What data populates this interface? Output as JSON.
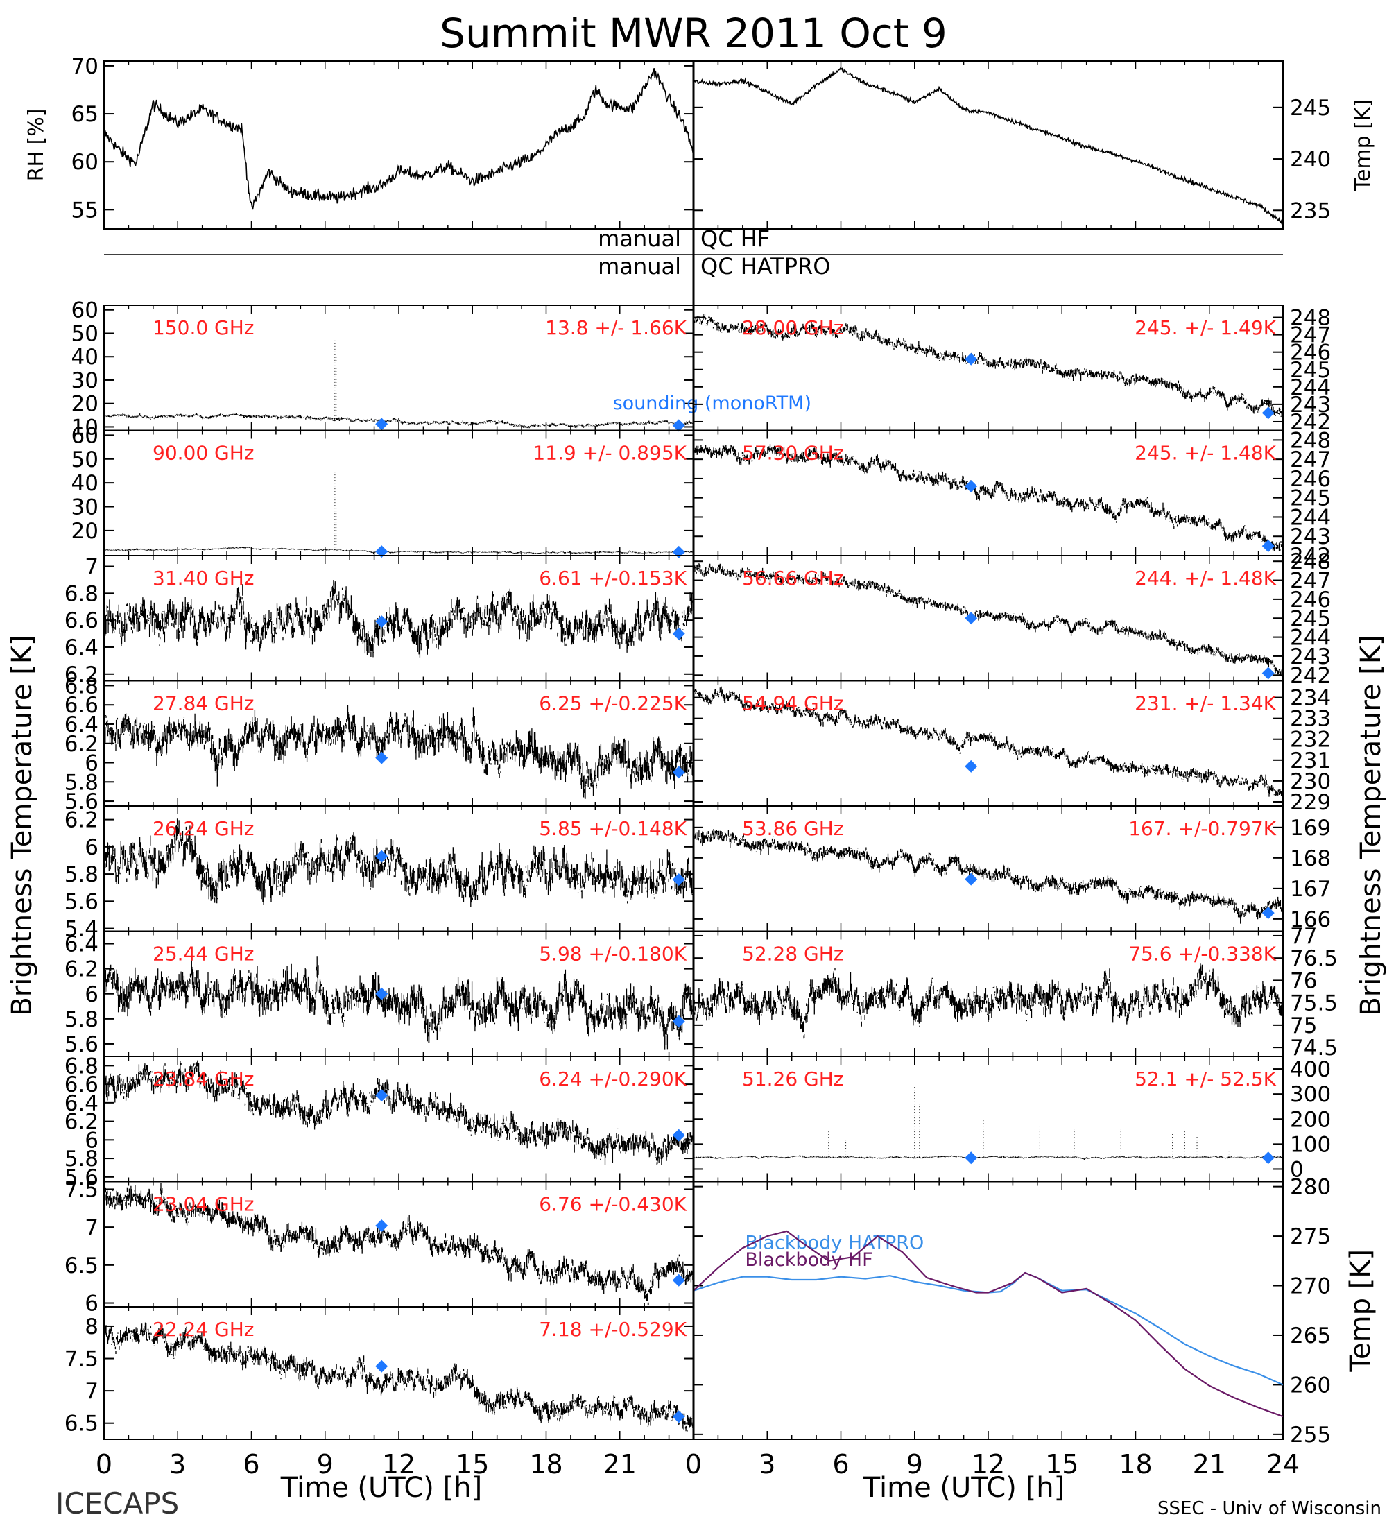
{
  "title": "Summit MWR 2011 Oct  9",
  "footer": {
    "left_label": "ICECAPS",
    "xlabel": "Time (UTC) [h]",
    "credit": "SSEC - Univ of Wisconsin"
  },
  "side_labels": {
    "left": "Brightness Temperature [K]",
    "right": "Brightness Temperature [K]"
  },
  "qc": {
    "hf_left": "manual",
    "hf_right": "QC HF",
    "hatpro_left": "manual",
    "hatpro_right": "QC HATPRO"
  },
  "colors": {
    "annotation": "#ff2020",
    "sounding": "#1e78ff",
    "hatpro": "#3a8fe8",
    "hf": "#6a1a66",
    "data": "#000000"
  },
  "chart_data": [
    {
      "id": "rh",
      "type": "line",
      "ylabel": "RH [%]",
      "ylim": [
        53,
        70.5
      ],
      "yticks": [
        55,
        60,
        65,
        70
      ],
      "xlim": [
        0,
        24
      ],
      "xticks": [
        0,
        3,
        6,
        9,
        12,
        15,
        18,
        21
      ],
      "series": [
        {
          "x": [
            0,
            0.7,
            1.3,
            2,
            3,
            4,
            5,
            5.6,
            6,
            6.7,
            7.5,
            8.5,
            9.5,
            10.5,
            11.3,
            12,
            13,
            14,
            15,
            15.6,
            16.5,
            17.5,
            18.5,
            19.5,
            20,
            20.5,
            21.5,
            22.4,
            23,
            23.6,
            24
          ],
          "y": [
            63,
            61,
            59.8,
            66,
            64,
            65.5,
            64,
            63.5,
            55,
            59,
            57,
            56.5,
            56.2,
            57,
            57.5,
            59,
            58.5,
            59.5,
            58,
            58.5,
            59.5,
            60.5,
            63,
            64.5,
            67.5,
            66,
            65.5,
            69.5,
            66.5,
            64,
            61
          ]
        }
      ]
    },
    {
      "id": "temp",
      "type": "line",
      "ylabel": "Temp [K]",
      "ylim": [
        233.2,
        249.5
      ],
      "yticks": [
        235,
        240,
        245
      ],
      "xlim": [
        0,
        24
      ],
      "xticks": [
        0,
        3,
        6,
        9,
        12,
        15,
        18,
        21
      ],
      "series": [
        {
          "x": [
            0,
            1,
            2,
            3,
            4,
            5,
            6,
            7,
            8,
            9,
            10,
            11,
            12,
            14,
            16,
            18,
            20,
            22,
            23,
            24
          ],
          "y": [
            247.5,
            247.3,
            247.6,
            246.5,
            245.3,
            247.2,
            248.7,
            247.3,
            246.5,
            245.5,
            246.8,
            244.8,
            244.5,
            242.8,
            241.2,
            239.8,
            238.0,
            236.3,
            235.5,
            233.8
          ]
        }
      ]
    },
    {
      "id": "hf-150",
      "type": "scatter",
      "label": "150.0 GHz",
      "stats": "13.8 +/-  1.66K",
      "ylim": [
        8.5,
        62
      ],
      "yticks": [
        10,
        20,
        30,
        40,
        50,
        60
      ],
      "xlim": [
        0,
        24
      ],
      "trend": {
        "x": [
          0,
          6,
          12,
          18,
          24
        ],
        "y": [
          14.2,
          15.0,
          12.2,
          10.8,
          11.6
        ]
      },
      "noise": 0.8,
      "spikes": [
        [
          9.4,
          47
        ],
        [
          9.45,
          40
        ]
      ],
      "sounding": [
        [
          11.3,
          11.2
        ],
        [
          23.4,
          10.6
        ]
      ],
      "sounding_label": "sounding (monoRTM)"
    },
    {
      "id": "hf-90",
      "type": "scatter",
      "label": "90.00 GHz",
      "stats": "11.9 +/- 0.895K",
      "ylim": [
        9.5,
        62
      ],
      "yticks": [
        20,
        30,
        40,
        50,
        60
      ],
      "xlim": [
        0,
        24
      ],
      "trend": {
        "x": [
          0,
          6,
          12,
          18,
          24
        ],
        "y": [
          11.8,
          12.6,
          11.2,
          10.8,
          11.0
        ]
      },
      "noise": 0.4,
      "spikes": [
        [
          9.4,
          45
        ],
        [
          9.45,
          30
        ]
      ],
      "sounding": [
        [
          11.3,
          11.2
        ],
        [
          23.4,
          11.0
        ]
      ]
    },
    {
      "id": "hp-3140",
      "type": "scatter",
      "label": "31.40 GHz",
      "stats": "6.61 +/-0.153K",
      "ylim": [
        6.15,
        7.08
      ],
      "yticks": [
        6.2,
        6.4,
        6.6,
        6.8,
        7.0
      ],
      "xlim": [
        0,
        24
      ],
      "trend": {
        "x": [
          0,
          6,
          12,
          18,
          24
        ],
        "y": [
          6.62,
          6.6,
          6.58,
          6.6,
          6.6
        ]
      },
      "noise": 0.14,
      "spikes": [],
      "sounding": [
        [
          11.3,
          6.59
        ],
        [
          23.4,
          6.5
        ]
      ]
    },
    {
      "id": "hf-2840",
      "type": "scatter",
      "label": "28.00 GHz",
      "stats": "245. +/- 1.49K",
      "ylim": [
        241.5,
        248.7
      ],
      "yticks": [
        242,
        243,
        244,
        245,
        246,
        247,
        248
      ],
      "xlim": [
        0,
        24
      ],
      "trend": {
        "x": [
          0,
          3,
          6,
          9,
          12,
          15,
          18,
          21,
          24
        ],
        "y": [
          247.8,
          247.3,
          247.2,
          246.2,
          245.4,
          244.9,
          244.6,
          243.6,
          242.5
        ]
      },
      "noise": 0.35,
      "spikes": [],
      "sounding": [
        [
          11.3,
          245.6
        ],
        [
          23.4,
          242.5
        ]
      ]
    },
    {
      "id": "hp-2784",
      "type": "scatter",
      "label": "27.84 GHz",
      "stats": "6.25 +/-0.225K",
      "ylim": [
        5.55,
        6.85
      ],
      "yticks": [
        5.6,
        5.8,
        6.0,
        6.2,
        6.4,
        6.6,
        6.8
      ],
      "xlim": [
        0,
        24
      ],
      "trend": {
        "x": [
          0,
          6,
          12,
          18,
          24
        ],
        "y": [
          6.3,
          6.3,
          6.35,
          6.1,
          5.98
        ]
      },
      "noise": 0.2,
      "spikes": [],
      "sounding": [
        [
          11.3,
          6.05
        ],
        [
          23.4,
          5.9
        ]
      ]
    },
    {
      "id": "hf-5730",
      "type": "scatter",
      "label": "57.30 GHz",
      "stats": "245. +/- 1.48K",
      "ylim": [
        242,
        248.5
      ],
      "yticks": [
        242,
        243,
        244,
        245,
        246,
        247,
        248
      ],
      "xlim": [
        0,
        24
      ],
      "trend": {
        "x": [
          0,
          3,
          6,
          9,
          12,
          15,
          18,
          21,
          24
        ],
        "y": [
          247.6,
          247.4,
          247.0,
          246.2,
          245.5,
          244.9,
          244.5,
          243.6,
          242.6
        ]
      },
      "noise": 0.35,
      "spikes": [],
      "sounding": [
        [
          11.3,
          245.6
        ],
        [
          23.4,
          242.5
        ]
      ]
    },
    {
      "id": "hp-2624",
      "type": "scatter",
      "label": "26.24 GHz",
      "stats": "5.85 +/-0.148K",
      "ylim": [
        5.38,
        6.3
      ],
      "yticks": [
        5.4,
        5.6,
        5.8,
        6.0,
        6.2
      ],
      "xlim": [
        0,
        24
      ],
      "trend": {
        "x": [
          0,
          6,
          12,
          18,
          24
        ],
        "y": [
          5.9,
          5.85,
          5.85,
          5.78,
          5.75
        ]
      },
      "noise": 0.15,
      "spikes": [],
      "sounding": [
        [
          11.3,
          5.93
        ],
        [
          23.4,
          5.76
        ]
      ]
    },
    {
      "id": "hf-5666",
      "type": "scatter",
      "label": "56.66 GHz",
      "stats": "244. +/- 1.48K",
      "ylim": [
        241.7,
        248.3
      ],
      "yticks": [
        242,
        243,
        244,
        245,
        246,
        247,
        248
      ],
      "xlim": [
        0,
        24
      ],
      "trend": {
        "x": [
          0,
          3,
          6,
          9,
          12,
          15,
          18,
          21,
          24
        ],
        "y": [
          247.5,
          247.2,
          246.9,
          246.0,
          245.2,
          244.7,
          244.3,
          243.4,
          242.3
        ]
      },
      "noise": 0.3,
      "spikes": [],
      "sounding": [
        [
          11.3,
          245.0
        ],
        [
          23.4,
          242.1
        ]
      ]
    },
    {
      "id": "hp-2544",
      "type": "scatter",
      "label": "25.44 GHz",
      "stats": "5.98 +/-0.180K",
      "ylim": [
        5.5,
        6.5
      ],
      "yticks": [
        5.6,
        5.8,
        6.0,
        6.2,
        6.4
      ],
      "xlim": [
        0,
        24
      ],
      "trend": {
        "x": [
          0,
          6,
          12,
          18,
          24
        ],
        "y": [
          6.08,
          6.05,
          5.98,
          5.9,
          5.88
        ]
      },
      "noise": 0.16,
      "spikes": [],
      "sounding": [
        [
          11.3,
          6.0
        ],
        [
          23.4,
          5.78
        ]
      ]
    },
    {
      "id": "hf-5474",
      "type": "scatter",
      "label": "54.94 GHz",
      "stats": "231. +/- 1.34K",
      "ylim": [
        228.8,
        234.8
      ],
      "yticks": [
        229,
        230,
        231,
        232,
        233,
        234
      ],
      "xlim": [
        0,
        24
      ],
      "trend": {
        "x": [
          0,
          3,
          6,
          9,
          12,
          15,
          18,
          21,
          24
        ],
        "y": [
          234.2,
          233.6,
          233.1,
          232.5,
          231.8,
          231.2,
          230.7,
          230.2,
          229.6
        ]
      },
      "noise": 0.3,
      "spikes": [],
      "sounding": [
        [
          11.3,
          230.7
        ]
      ]
    },
    {
      "id": "hp-2384",
      "type": "scatter",
      "label": "23.84 GHz",
      "stats": "6.24 +/-0.290K",
      "ylim": [
        5.55,
        6.9
      ],
      "yticks": [
        5.6,
        5.8,
        6.0,
        6.2,
        6.4,
        6.6,
        6.8
      ],
      "xlim": [
        0,
        24
      ],
      "trend": {
        "x": [
          0,
          4,
          8,
          11,
          14,
          17,
          20,
          24
        ],
        "y": [
          6.65,
          6.6,
          6.35,
          6.45,
          6.3,
          6.05,
          5.95,
          6.0
        ]
      },
      "noise": 0.15,
      "spikes": [],
      "sounding": [
        [
          11.3,
          6.48
        ],
        [
          23.4,
          6.05
        ]
      ]
    },
    {
      "id": "hf-5386",
      "type": "scatter",
      "label": "53.86 GHz",
      "stats": "167. +/-0.797K",
      "ylim": [
        165.6,
        169.7
      ],
      "yticks": [
        166,
        167,
        168,
        169
      ],
      "xlim": [
        0,
        24
      ],
      "trend": {
        "x": [
          0,
          4,
          8,
          12,
          16,
          20,
          24
        ],
        "y": [
          168.6,
          168.4,
          168.0,
          167.5,
          167.1,
          166.7,
          166.4
        ]
      },
      "noise": 0.25,
      "spikes": [],
      "sounding": [
        [
          11.3,
          167.3
        ],
        [
          23.4,
          166.2
        ]
      ]
    },
    {
      "id": "hp-2304",
      "type": "scatter",
      "label": "23.04 GHz",
      "stats": "6.76 +/-0.430K",
      "ylim": [
        5.95,
        7.6
      ],
      "yticks": [
        6.0,
        6.5,
        7.0,
        7.5
      ],
      "xlim": [
        0,
        24
      ],
      "trend": {
        "x": [
          0,
          3,
          6,
          9,
          12,
          15,
          18,
          21,
          24
        ],
        "y": [
          7.4,
          7.3,
          7.1,
          6.8,
          6.9,
          6.75,
          6.45,
          6.35,
          6.35
        ]
      },
      "noise": 0.15,
      "spikes": [],
      "sounding": [
        [
          11.3,
          7.02
        ],
        [
          23.4,
          6.3
        ]
      ]
    },
    {
      "id": "hf-5228",
      "type": "scatter",
      "label": "52.28 GHz",
      "stats": "75.6 +/-0.338K",
      "ylim": [
        74.3,
        77.1
      ],
      "yticks": [
        74.5,
        75.0,
        75.5,
        76.0,
        76.5,
        77.0
      ],
      "xlim": [
        0,
        24
      ],
      "trend": {
        "x": [
          0,
          12,
          24
        ],
        "y": [
          75.6,
          75.6,
          75.6
        ]
      },
      "noise": 0.35,
      "spikes": [],
      "sounding": []
    },
    {
      "id": "hp-2224",
      "type": "scatter",
      "label": "22.24 GHz",
      "stats": "7.18 +/-0.529K",
      "ylim": [
        6.25,
        8.3
      ],
      "yticks": [
        6.5,
        7.0,
        7.5,
        8.0
      ],
      "xlim": [
        0,
        24
      ],
      "trend": {
        "x": [
          0,
          3,
          6,
          9,
          12,
          15,
          18,
          21,
          24
        ],
        "y": [
          7.9,
          7.8,
          7.55,
          7.25,
          7.2,
          7.0,
          6.8,
          6.65,
          6.6
        ]
      },
      "noise": 0.17,
      "spikes": [],
      "sounding": [
        [
          11.3,
          7.38
        ],
        [
          23.4,
          6.6
        ]
      ]
    },
    {
      "id": "hf-5126",
      "type": "scatter",
      "label": "51.26 GHz",
      "stats": "52.1 +/- 52.5K",
      "ylim": [
        -50,
        450
      ],
      "yticks": [
        0,
        100,
        200,
        300,
        400
      ],
      "xlim": [
        0,
        24
      ],
      "trend": {
        "x": [
          0,
          12,
          24
        ],
        "y": [
          48,
          48,
          48
        ]
      },
      "noise": 4,
      "spikes": [
        [
          5.5,
          150
        ],
        [
          6.2,
          120
        ],
        [
          9.0,
          330
        ],
        [
          9.2,
          260
        ],
        [
          11.8,
          200
        ],
        [
          14.1,
          180
        ],
        [
          15.5,
          160
        ],
        [
          17.4,
          170
        ],
        [
          19.5,
          140
        ],
        [
          20.0,
          150
        ],
        [
          20.5,
          130
        ],
        [
          21.8,
          80
        ]
      ],
      "sounding": [
        [
          11.3,
          45
        ],
        [
          23.4,
          45
        ]
      ]
    },
    {
      "id": "bb",
      "type": "line",
      "ylabel": "Temp [K]",
      "ylim": [
        254.5,
        280.5
      ],
      "yticks": [
        255,
        260,
        265,
        270,
        275,
        280
      ],
      "xlim": [
        0,
        24
      ],
      "xticks": [
        0,
        3,
        6,
        9,
        12,
        15,
        18,
        21,
        24
      ],
      "series": [
        {
          "name": "Blackbody HATPRO",
          "x": [
            0,
            1,
            2,
            3,
            4,
            5,
            6,
            7,
            8,
            9,
            10,
            11,
            12,
            12.5,
            13,
            13.5,
            14,
            15,
            16,
            17,
            18,
            19,
            20,
            21,
            22,
            23,
            24
          ],
          "y": [
            269.5,
            270.3,
            270.9,
            270.9,
            270.6,
            270.6,
            270.9,
            270.7,
            271.0,
            270.4,
            270.0,
            269.5,
            269.3,
            269.4,
            270.2,
            271.3,
            270.8,
            269.5,
            269.6,
            268.4,
            267.2,
            265.7,
            264.1,
            262.9,
            261.9,
            261.1,
            260.0
          ]
        },
        {
          "name": "Blackbody HF",
          "x": [
            0,
            1,
            2,
            3,
            3.8,
            4.5,
            5.5,
            6.5,
            7.5,
            8.5,
            9.5,
            10.5,
            11.5,
            12,
            13,
            13.5,
            14,
            15,
            16,
            17,
            18,
            19,
            20,
            21,
            22,
            23,
            24
          ],
          "y": [
            269.5,
            271.8,
            273.8,
            275.0,
            275.5,
            274.2,
            272.5,
            272.9,
            275.0,
            273.4,
            270.8,
            270.0,
            269.3,
            269.3,
            270.3,
            271.3,
            270.8,
            269.3,
            269.7,
            268.2,
            266.5,
            264.0,
            261.6,
            259.9,
            258.7,
            257.7,
            256.8
          ]
        }
      ]
    }
  ]
}
